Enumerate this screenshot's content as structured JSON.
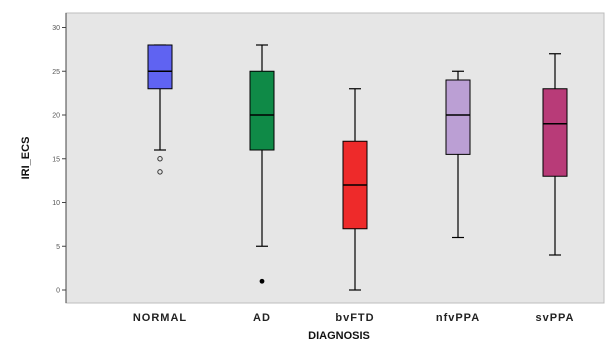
{
  "chart_data": {
    "type": "boxplot",
    "xlabel": "DIAGNOSIS",
    "ylabel": "IRI_ECS",
    "ylim": [
      -2,
      32
    ],
    "yticks": [
      0,
      5,
      10,
      15,
      20,
      25,
      30
    ],
    "ytick_labels": [
      "0",
      "5",
      "10",
      "15",
      "20",
      "25",
      "30"
    ],
    "grid": false,
    "plot_background": "#e6e6e6",
    "categories": [
      "NORMAL",
      "AD",
      "bvFTD",
      "nfvPPA",
      "svPPA"
    ],
    "boxes": [
      {
        "name": "NORMAL",
        "min": 16,
        "q1": 23,
        "median": 25,
        "q3": 28,
        "max": 28,
        "outliers": [
          13.5,
          15
        ],
        "outlier_style": "circle",
        "color": "#5f63f2"
      },
      {
        "name": "AD",
        "min": 5,
        "q1": 16,
        "median": 20,
        "q3": 25,
        "max": 28,
        "outliers": [
          1
        ],
        "outlier_style": "star",
        "color": "#0f8a47"
      },
      {
        "name": "bvFTD",
        "min": 0,
        "q1": 7,
        "median": 12,
        "q3": 17,
        "max": 23,
        "outliers": [],
        "outlier_style": "circle",
        "color": "#ee2a2a"
      },
      {
        "name": "nfvPPA",
        "min": 6,
        "q1": 15.5,
        "median": 20,
        "q3": 24,
        "max": 25,
        "outliers": [],
        "outlier_style": "circle",
        "color": "#bb9fd4"
      },
      {
        "name": "svPPA",
        "min": 4,
        "q1": 13,
        "median": 19,
        "q3": 23,
        "max": 27,
        "outliers": [],
        "outlier_style": "circle",
        "color": "#b83b78"
      }
    ]
  }
}
